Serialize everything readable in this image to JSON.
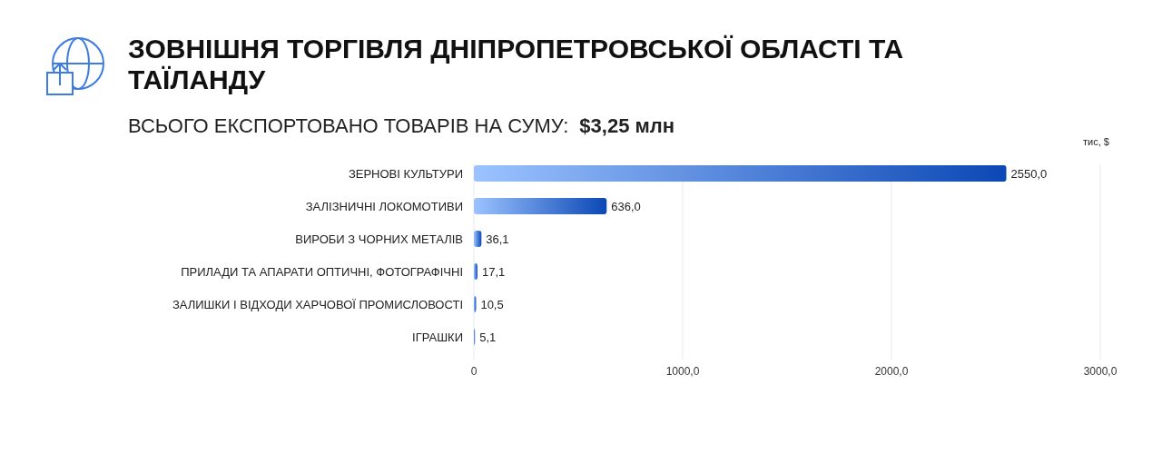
{
  "chart_data": {
    "type": "bar",
    "orientation": "horizontal",
    "title": "ЗОВНІШНЯ ТОРГІВЛЯ ДНІПРОПЕТРОВСЬКОЇ ОБЛАСТІ ТА ТАЇЛАНДУ",
    "subtitle": "ВСЬОГО ЕКСПОРТОВАНО ТОВАРІВ НА СУМУ:",
    "annotations": [
      "$3,25 млн"
    ],
    "xlabel": "тис, $",
    "categories": [
      "ЗЕРНОВІ КУЛЬТУРИ",
      "ЗАЛІЗНИЧНІ ЛОКОМОТИВИ",
      "ВИРОБИ З ЧОРНИХ МЕТАЛІВ",
      "ПРИЛАДИ ТА АПАРАТИ ОПТИЧНІ, ФОТОГРАФІЧНІ",
      "ЗАЛИШКИ І ВІДХОДИ ХАРЧОВОЇ ПРОМИСЛОВОСТІ",
      "ІГРАШКИ"
    ],
    "values": [
      2550.0,
      636.0,
      36.1,
      17.1,
      10.5,
      5.1
    ],
    "value_labels": [
      "2550,0",
      "636,0",
      "36,1",
      "17,1",
      "10,5",
      "5,1"
    ],
    "color": "#0b47b5",
    "xlim": [
      0,
      3000
    ],
    "xticks": [
      0,
      {
        "value": 1000,
        "label": "1000,0"
      },
      {
        "value": 2000,
        "label": "2000,0"
      },
      {
        "value": 3000,
        "label": "3000,0"
      }
    ],
    "grid": "x"
  }
}
